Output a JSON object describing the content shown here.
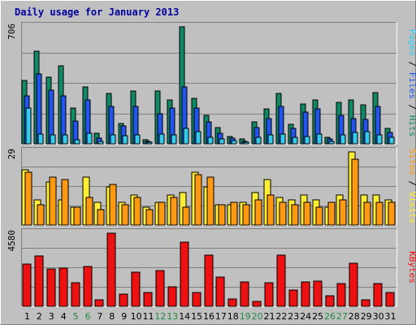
{
  "colors": {
    "background": "#c0c0c0",
    "frame_light": "#ffffff",
    "frame_dark": "#808080",
    "title": "#0000a0",
    "pages": "#33ccee",
    "files": "#2255ee",
    "hits": "#118866",
    "visits": "#ffee33",
    "sites": "#ff9911",
    "kbytes": "#ee1111",
    "weekday_label": "#000000",
    "weekend_label": "#228844"
  },
  "chart_data": {
    "type": "bar",
    "title": "Daily usage for January 2013",
    "days": [
      "1",
      "2",
      "3",
      "4",
      "5",
      "6",
      "7",
      "8",
      "9",
      "10",
      "11",
      "12",
      "13",
      "14",
      "15",
      "16",
      "17",
      "18",
      "19",
      "20",
      "21",
      "22",
      "23",
      "24",
      "25",
      "26",
      "27",
      "28",
      "29",
      "30",
      "31"
    ],
    "weekend_days": [
      "5",
      "6",
      "12",
      "13",
      "19",
      "20",
      "26",
      "27"
    ],
    "panels": [
      {
        "max_label": "706",
        "right_labels": [
          {
            "text": "Pages",
            "color": "#33ccee"
          },
          {
            "text": " / ",
            "color": "#000000"
          },
          {
            "text": "Files",
            "color": "#2255ee"
          },
          {
            "text": " / ",
            "color": "#000000"
          },
          {
            "text": "Hits",
            "color": "#118866"
          }
        ],
        "ymax": 706,
        "series": [
          {
            "name": "Hits",
            "color": "#118866",
            "values": [
              380,
              560,
              400,
              470,
              215,
              345,
              65,
              305,
              125,
              320,
              25,
              320,
              265,
              706,
              275,
              170,
              100,
              45,
              30,
              130,
              210,
              305,
              120,
              240,
              265,
              40,
              250,
              265,
              235,
              310,
              95
            ]
          },
          {
            "name": "Files",
            "color": "#2255ee",
            "values": [
              290,
              420,
              325,
              290,
              135,
              265,
              35,
              225,
              110,
              225,
              15,
              180,
              215,
              345,
              215,
              130,
              65,
              35,
              15,
              100,
              150,
              225,
              95,
              190,
              210,
              30,
              170,
              150,
              145,
              225,
              70
            ]
          },
          {
            "name": "Pages",
            "color": "#33ccee",
            "values": [
              215,
              60,
              55,
              55,
              25,
              65,
              15,
              55,
              50,
              55,
              10,
              60,
              55,
              95,
              75,
              40,
              30,
              20,
              10,
              40,
              55,
              60,
              40,
              45,
              60,
              15,
              55,
              70,
              75,
              55,
              40
            ]
          }
        ]
      },
      {
        "max_label": "29",
        "right_labels": [
          {
            "text": "Sites",
            "color": "#ff9911"
          },
          {
            "text": " / ",
            "color": "#000000"
          },
          {
            "text": "Visits",
            "color": "#ffee33"
          }
        ],
        "ymax": 29,
        "series": [
          {
            "name": "Visits",
            "color": "#ffee33",
            "values": [
              22,
              10,
              17,
              10,
              7,
              19,
              9,
              15,
              9,
              12,
              7,
              9,
              12,
              13,
              21,
              15,
              8,
              8,
              9,
              13,
              18,
              11,
              10,
              12,
              10,
              7,
              12,
              29,
              12,
              12,
              10
            ]
          },
          {
            "name": "Sites",
            "color": "#ff9911",
            "values": [
              21,
              8,
              19,
              18,
              7,
              11,
              6,
              16,
              8,
              11,
              6,
              9,
              11,
              7,
              20,
              19,
              8,
              9,
              8,
              10,
              12,
              9,
              8,
              9,
              7,
              9,
              10,
              26,
              9,
              9,
              9
            ]
          }
        ]
      },
      {
        "max_label": "4580",
        "right_labels": [
          {
            "text": "KBytes",
            "color": "#ee1111"
          }
        ],
        "ymax": 4580,
        "series": [
          {
            "name": "KBytes",
            "color": "#ee1111",
            "values": [
              2650,
              3160,
              2320,
              2410,
              1470,
              2480,
              420,
              4580,
              780,
              2130,
              860,
              2220,
              1240,
              4000,
              860,
              3190,
              1820,
              440,
              1540,
              290,
              1470,
              3210,
              1020,
              1550,
              1560,
              670,
              1440,
              2710,
              410,
              1430,
              880
            ]
          }
        ]
      }
    ]
  }
}
